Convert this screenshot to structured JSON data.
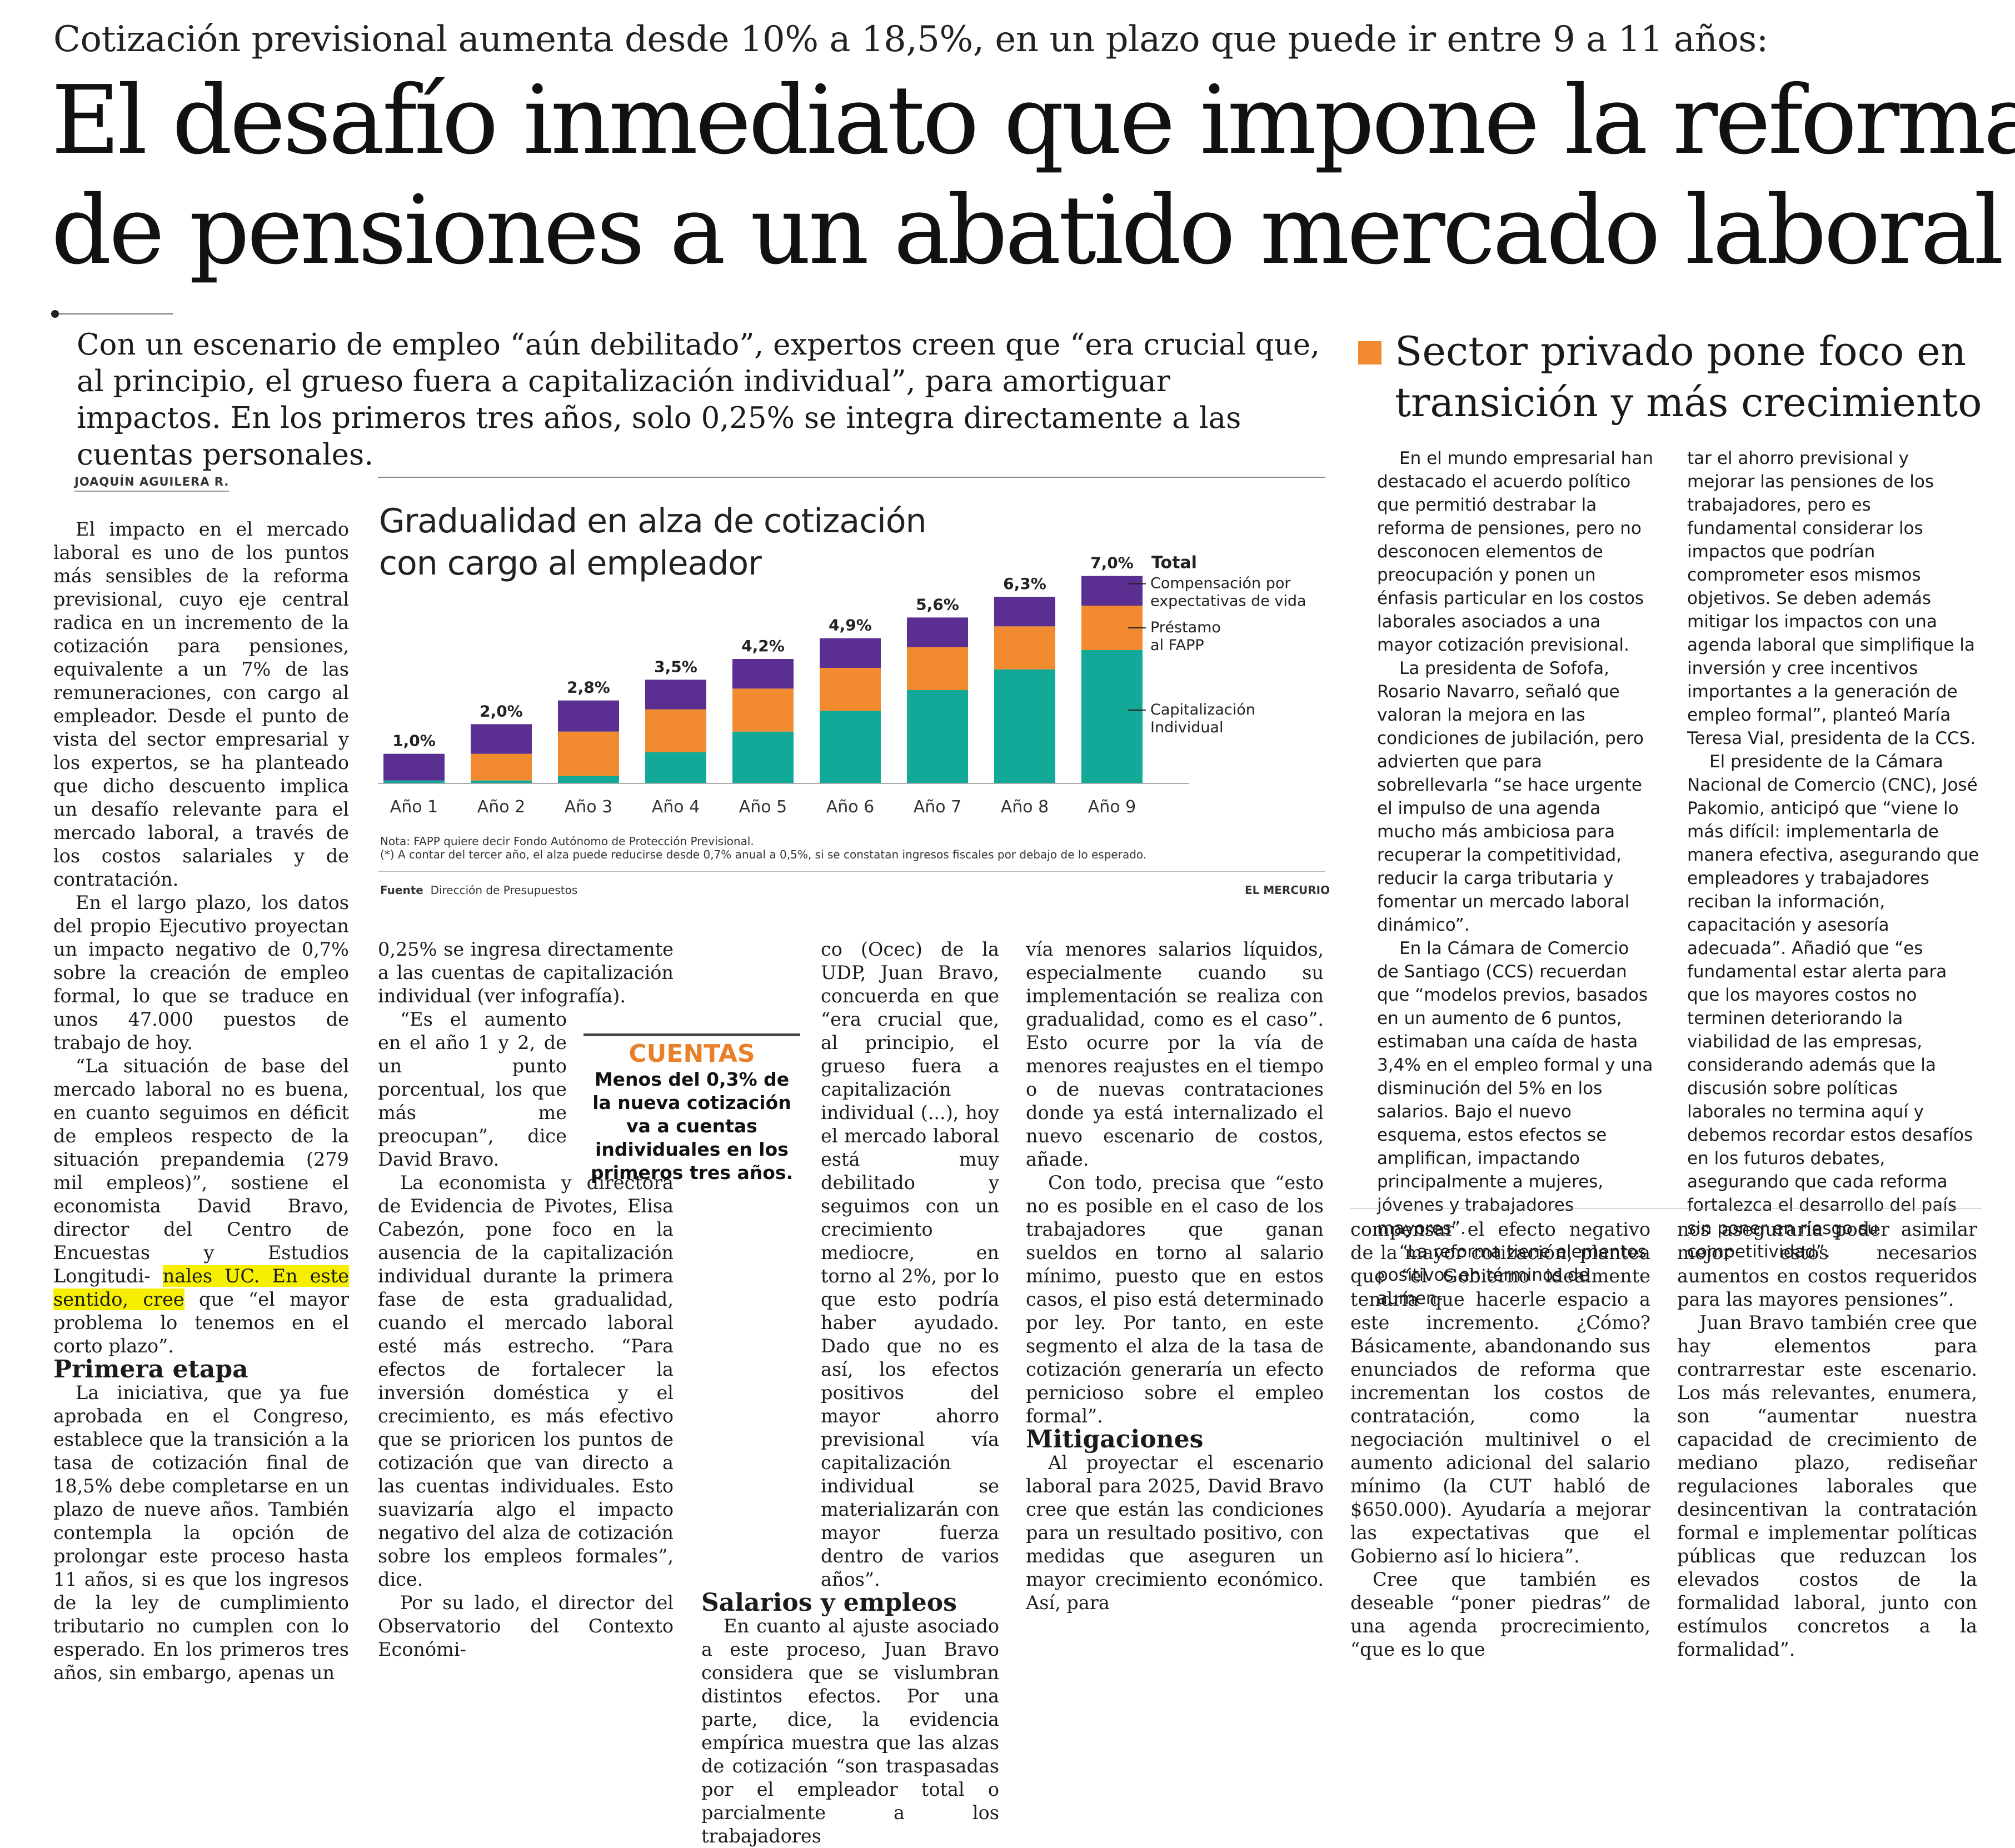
{
  "kicker": "Cotización previsional aumenta desde 10% a 18,5%, en un plazo que puede ir entre 9 a 11 años:",
  "headline": {
    "line1": "El desafío inmediato que impone la reforma",
    "line2": "de pensiones a un abatido mercado laboral"
  },
  "deck": "Con un escenario de empleo “aún debilitado”, expertos creen que “era crucial que, al principio, el grueso fuera a capitalización individual”, para amortiguar impactos. En los primeros tres años, solo 0,25% se integra directamente a las cuentas personales.",
  "byline": "JOAQUÍN AGUILERA R.",
  "col1": {
    "p1": "El impacto en el mercado laboral es uno de los puntos más sensibles de la reforma previsional, cuyo eje central radica en un incremento de la cotización para pensiones, equivalente a un 7% de las remuneraciones, con cargo al empleador. Desde el punto de vista del sector empresarial y los expertos, se ha planteado que dicho descuento implica un desafío relevante para el mercado laboral, a través de los costos salariales y de contratación.",
    "p2": "En el largo plazo, los datos del propio Ejecutivo proyectan un impacto negativo de 0,7% sobre la creación de empleo formal, lo que se traduce en unos 47.000 puestos de trabajo de hoy.",
    "p3a": "“La situación de base del mercado laboral no es buena, en cuanto seguimos en déficit de empleos respecto de la situación prepandemia (279 mil empleos)”, sostiene el economista David Bravo, director del Centro de Encuestas y Estudios Longitudi-",
    "p3hl": "nales UC. En este sentido, cree",
    "p3b": "que “el mayor problema lo tenemos en el corto plazo”.",
    "subhead": "Primera etapa",
    "p4": "La iniciativa, que ya fue aprobada en el Congreso, establece que la transición a la tasa de cotización final de 18,5% debe completarse en un plazo de nueve años. También contempla la opción de prolongar este proceso hasta 11 años, si es que los ingresos de la ley de cumplimiento tributario no cumplen con lo esperado. En los primeros tres años, sin embargo, apenas un"
  },
  "col2": {
    "p1": "0,25% se ingresa directamente a las cuentas de capitalización individual (ver infografía).",
    "p2": "“Es el aumento en el año 1 y 2, de un punto porcentual, los que más me preocupan”, dice David Bravo.",
    "p3": "La economista y directora de Evidencia de Pivotes, Elisa Cabezón, pone foco en la ausencia de la capitalización individual durante la primera fase de esta gradualidad, cuando el mercado laboral esté más estrecho. “Para efectos de fortalecer la inversión doméstica y el crecimiento, es más efectivo que se prioricen los puntos de cotización que van directo a las cuentas individuales. Esto suavizaría algo el impacto negativo del alza de cotización sobre los empleos formales”, dice.",
    "p4": "Por su lado, el director del Observatorio del Contexto Económi-"
  },
  "col3": {
    "p1": "co (Ocec) de la UDP, Juan Bravo, concuerda en que “era crucial que, al principio, el grueso fuera a capitalización individual (...), hoy el mercado laboral está muy debilitado y seguimos con un crecimiento mediocre, en torno al 2%, por lo que esto podría haber ayudado. Dado que no es así, los efectos positivos del mayor ahorro previsional vía capitalización individual se materializarán con mayor fuerza dentro de varios años”.",
    "subhead": "Salarios y empleos",
    "p2": "En cuanto al ajuste asociado a este proceso, Juan Bravo considera que se vislumbran distintos efectos. Por una parte, dice, la evidencia empírica muestra que las alzas de cotización “son traspasadas por el empleador total o parcialmente a los trabajadores"
  },
  "col4": {
    "p1": "vía menores salarios líquidos, especialmente cuando su implementación se realiza con gradualidad, como es el caso”. Esto ocurre por la vía de menores reajustes en el tiempo o de nuevas contrataciones donde ya está internalizado el nuevo escenario de costos, añade.",
    "p2": "Con todo, precisa que “esto no es posible en el caso de los trabajadores que ganan sueldos en torno al salario mínimo, puesto que en estos casos, el piso está determinado por ley. Por tanto, en este segmento el alza de la tasa de cotización generaría un efecto pernicioso sobre el empleo formal”.",
    "subhead": "Mitigaciones",
    "p3": "Al proyectar el escenario laboral para 2025, David Bravo cree que están las condiciones para un resultado positivo, con medidas que aseguren un mayor crecimiento económico. Así, para"
  },
  "col5": {
    "p1": "compensar el efecto negativo de la mayor cotización, plantea que “el Gobierno idealmente tendría que hacerle espacio a este incremento. ¿Cómo? Básicamente, abandonando sus enunciados de reforma que incrementan los costos de contratación, como la negociación multinivel o el aumento adicional del salario mínimo (la CUT habló de $650.000). Ayudaría a mejorar las expectativas que el Gobierno así lo hiciera”.",
    "p2": "Cree que también es deseable “poner piedras” de una agenda procrecimiento, “que es lo que"
  },
  "col6": {
    "p1": "nos aseguraría poder asimilar mejor estos necesarios aumentos en costos requeridos para las mayores pensiones”.",
    "p2": "Juan Bravo también cree que hay elementos para contrarrestar este escenario. Los más relevantes, enumera, son “aumentar nuestra capacidad de crecimiento de mediano plazo, rediseñar regulaciones laborales que desincentivan la contratación formal e implementar políticas públicas que reduzcan los elevados costos de la formalidad laboral, junto con estímulos concretos a la formalidad”."
  },
  "callout": {
    "title": "CUENTAS",
    "body": "Menos del 0,3% de la nueva cotización va a cuentas individuales en los primeros tres años."
  },
  "sidebar": {
    "title_line1": "Sector privado pone foco en",
    "title_line2": "transición y más crecimiento",
    "colA": {
      "p1": "En el mundo empresarial han destacado el acuerdo político que permitió destrabar la reforma de pensiones, pero no desconocen elementos de preocupación y ponen un énfasis particular en los costos laborales asociados a una mayor cotización previsional.",
      "p2": "La presidenta de Sofofa, Rosario Navarro, señaló que valoran la mejora en las condiciones de jubilación, pero advierten que para sobrellevarla “se hace urgente el impulso de una agenda mucho más ambiciosa para recuperar la competitividad, reducir la carga tributaria y fomentar un mercado laboral dinámico”.",
      "p3": "En la Cámara de Comercio de Santiago (CCS) recuerdan que “modelos previos, basados en un aumento de 6 puntos, estimaban una caída de hasta 3,4% en el empleo formal y una disminución del 5% en los salarios. Bajo el nuevo esquema, estos efectos se amplifican, impactando principalmente a mujeres, jóvenes y trabajadores mayores”.",
      "p4": "“La reforma tiene elementos positivos en términos de aumen-"
    },
    "colB": {
      "p1": "tar el ahorro previsional y mejorar las pensiones de los trabajadores, pero es fundamental considerar los impactos que podrían comprometer esos mismos objetivos. Se deben además mitigar los impactos con una agenda laboral que simplifique la inversión y cree incentivos importantes a la generación de empleo formal”, planteó María Teresa Vial, presidenta de la CCS.",
      "p2": "El presidente de la Cámara Nacional de Comercio (CNC), José Pakomio, anticipó que “viene lo más difícil: implementarla de manera efectiva, asegurando que empleadores y trabajadores reciban la información, capacitación y asesoría adecuada”. Añadió que “es fundamental estar alerta para que los mayores costos no terminen deteriorando la viabilidad de las empresas, considerando además que la discusión sobre políticas laborales no termina aquí y debemos recordar estos desafíos en los futuros debates, asegurando que cada reforma fortalezca el desarrollo del país sin poner en riesgo su competitividad”."
    }
  },
  "chart_data": {
    "type": "bar",
    "title": "Gradualidad en alza de cotización con cargo al empleador",
    "categories": [
      "Año 1",
      "Año 2",
      "Año 3",
      "Año 4",
      "Año 5",
      "Año 6",
      "Año 7",
      "Año 8",
      "Año 9"
    ],
    "totals_label": [
      "1,0%",
      "2,0%",
      "2,8%",
      "3,5%",
      "4,2%",
      "4,9%",
      "5,6%",
      "6,3%",
      "7,0%"
    ],
    "totals": [
      1.0,
      2.0,
      2.8,
      3.5,
      4.2,
      4.9,
      5.6,
      6.3,
      7.0
    ],
    "series": [
      {
        "name": "Capitalización Individual",
        "color": "#12a998",
        "values": [
          0.1,
          0.1,
          0.25,
          1.05,
          1.75,
          2.45,
          3.15,
          3.85,
          4.5
        ]
      },
      {
        "name": "Préstamo al FAPP",
        "color": "#f28a30",
        "values": [
          0.0,
          0.9,
          1.5,
          1.45,
          1.45,
          1.45,
          1.45,
          1.45,
          1.5
        ]
      },
      {
        "name": "Compensación por expectativas de vida",
        "color": "#5b2f91",
        "values": [
          0.9,
          1.0,
          1.05,
          1.0,
          1.0,
          1.0,
          1.0,
          1.0,
          1.0
        ]
      }
    ],
    "total_label": "Total",
    "legend_capitalizacion": "Capitalización Individual",
    "legend_prestamo": "Préstamo al FAPP",
    "legend_compensacion": "Compensación por expectativas de vida",
    "total_marker": "7,0%",
    "ylim": [
      0,
      7.5
    ],
    "note1": "Nota: FAPP quiere decir Fondo Autónomo de Protección Previsional.",
    "note2": "(*) A contar del tercer año, el alza puede reducirse desde 0,7% anual a 0,5%, si se constatan ingresos fiscales por debajo de lo esperado.",
    "source_label": "Fuente",
    "source": "Dirección de Presupuestos",
    "brand": "EL MERCURIO"
  }
}
